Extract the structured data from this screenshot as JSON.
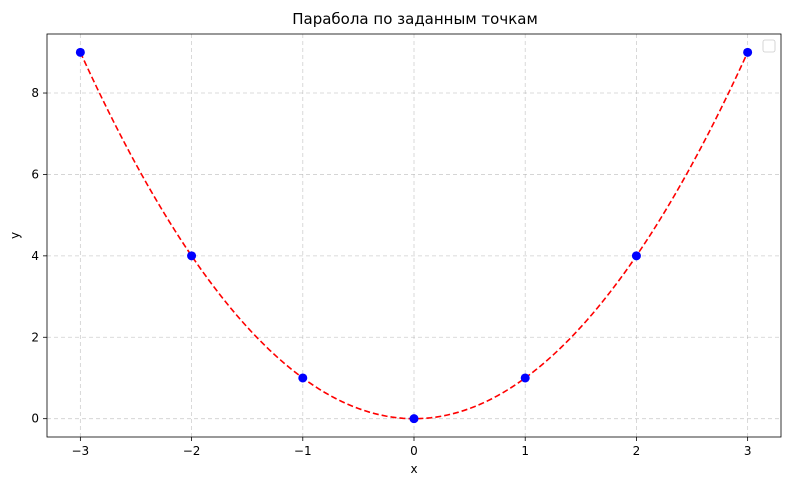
{
  "chart_data": {
    "type": "scatter",
    "title": "Парабола по заданным точкам",
    "xlabel": "x",
    "ylabel": "y",
    "xlim": [
      -3.3,
      3.3
    ],
    "ylim": [
      -0.45,
      9.45
    ],
    "xticks": [
      -3,
      -2,
      -1,
      0,
      1,
      2,
      3
    ],
    "yticks": [
      0,
      2,
      4,
      6,
      8
    ],
    "xtick_labels": [
      "−3",
      "−2",
      "−1",
      "0",
      "1",
      "2",
      "3"
    ],
    "ytick_labels": [
      "0",
      "2",
      "4",
      "6",
      "8"
    ],
    "grid": true,
    "legend": {
      "placement": "top-right",
      "entries": []
    },
    "series": [
      {
        "kind": "points",
        "color": "#0000ff",
        "x": [
          -3,
          -2,
          -1,
          0,
          1,
          2,
          3
        ],
        "y": [
          9,
          4,
          1,
          0,
          1,
          4,
          9
        ]
      },
      {
        "kind": "curve",
        "style": "dashed",
        "color": "#ff0000",
        "equation": "y = x^2",
        "x_range": [
          -3,
          3
        ]
      }
    ]
  }
}
